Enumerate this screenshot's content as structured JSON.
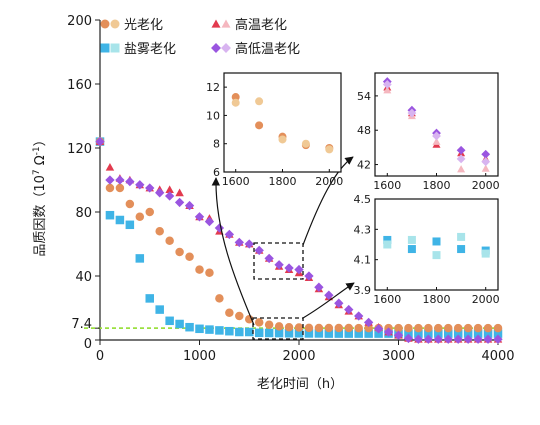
{
  "colors": {
    "light_aging": "#e38f5a",
    "light_aging_open": "#f0c995",
    "salt_fog_aging": "#3fb4e6",
    "salt_fog_aging_open": "#a8e4ea",
    "high_temp_aging": "#e23a4e",
    "high_temp_aging_open": "#f5b7bf",
    "high_low_temp_aging": "#9a55e0",
    "high_low_temp_aging_open": "#d8b4f0",
    "reference_line": "#9be040"
  },
  "chart_data": {
    "type": "scatter",
    "xlabel": "老化时间（h）",
    "ylabel": "品质因数（10^7 Ω^-1）",
    "ylabel_parts": {
      "main": "品质因数（10",
      "exp1": "7",
      "mid": " Ω",
      "exp2": "-1",
      "end": "）"
    },
    "xlim": [
      0,
      4000
    ],
    "ylim": [
      0,
      200
    ],
    "xticks": [
      "0",
      "1000",
      "2000",
      "3000",
      "4000"
    ],
    "yticks": [
      "0",
      "7.4",
      "40",
      "80",
      "120",
      "160",
      "200"
    ],
    "reference_line": {
      "y": 7.4,
      "label": "7.4"
    },
    "legend": {
      "placement": "top",
      "entries": [
        {
          "label": "光老化",
          "series": "light_aging"
        },
        {
          "label": "高温老化",
          "series": "high_temp_aging"
        },
        {
          "label": "盐雾老化",
          "series": "salt_fog_aging"
        },
        {
          "label": "高低温老化",
          "series": "high_low_temp_aging"
        }
      ]
    },
    "series": [
      {
        "id": "light_aging",
        "marker": "circle",
        "points": [
          [
            0,
            124
          ],
          [
            100,
            95
          ],
          [
            200,
            95
          ],
          [
            300,
            85
          ],
          [
            400,
            77
          ],
          [
            500,
            80
          ],
          [
            600,
            68
          ],
          [
            700,
            62
          ],
          [
            800,
            55
          ],
          [
            900,
            52
          ],
          [
            1000,
            44
          ],
          [
            1100,
            42
          ],
          [
            1200,
            26
          ],
          [
            1300,
            17
          ],
          [
            1400,
            15
          ],
          [
            1500,
            13
          ],
          [
            1600,
            11
          ],
          [
            1700,
            9.5
          ],
          [
            1800,
            8.5
          ],
          [
            1900,
            8
          ],
          [
            2000,
            7.8
          ],
          [
            2100,
            7.6
          ],
          [
            2200,
            7.5
          ],
          [
            2300,
            7.5
          ],
          [
            2400,
            7.5
          ],
          [
            2500,
            7.5
          ],
          [
            2600,
            7.4
          ],
          [
            2700,
            7.4
          ],
          [
            2800,
            7.4
          ],
          [
            2900,
            7.4
          ],
          [
            3000,
            7.4
          ],
          [
            3100,
            7.4
          ],
          [
            3200,
            7.4
          ],
          [
            3300,
            7.4
          ],
          [
            3400,
            7.4
          ],
          [
            3500,
            7.4
          ],
          [
            3600,
            7.4
          ],
          [
            3700,
            7.4
          ],
          [
            3800,
            7.4
          ],
          [
            3900,
            7.4
          ],
          [
            4000,
            7.4
          ]
        ]
      },
      {
        "id": "salt_fog_aging",
        "marker": "square",
        "points": [
          [
            0,
            124
          ],
          [
            100,
            78
          ],
          [
            200,
            75
          ],
          [
            300,
            72
          ],
          [
            400,
            51
          ],
          [
            500,
            26
          ],
          [
            600,
            19
          ],
          [
            700,
            12
          ],
          [
            800,
            10
          ],
          [
            900,
            8
          ],
          [
            1000,
            7
          ],
          [
            1100,
            6.5
          ],
          [
            1200,
            6
          ],
          [
            1300,
            5.5
          ],
          [
            1400,
            5
          ],
          [
            1500,
            5
          ],
          [
            1600,
            4.5
          ],
          [
            1700,
            4.4
          ],
          [
            1800,
            4.3
          ],
          [
            1900,
            4.2
          ],
          [
            2000,
            4.2
          ],
          [
            2100,
            4.1
          ],
          [
            2200,
            4.1
          ],
          [
            2300,
            4
          ],
          [
            2400,
            4
          ],
          [
            2500,
            4
          ],
          [
            2600,
            4
          ],
          [
            2700,
            4
          ],
          [
            2800,
            4
          ],
          [
            2900,
            4
          ],
          [
            3000,
            4
          ],
          [
            3100,
            4
          ],
          [
            3200,
            4
          ],
          [
            3300,
            4
          ],
          [
            3400,
            4
          ],
          [
            3500,
            4
          ],
          [
            3600,
            4
          ],
          [
            3700,
            4
          ],
          [
            3800,
            4
          ],
          [
            3900,
            4
          ],
          [
            4000,
            4
          ]
        ]
      },
      {
        "id": "high_temp_aging",
        "marker": "triangle",
        "points": [
          [
            0,
            124
          ],
          [
            100,
            108
          ],
          [
            200,
            101
          ],
          [
            300,
            100
          ],
          [
            400,
            97
          ],
          [
            500,
            95
          ],
          [
            600,
            94
          ],
          [
            700,
            94
          ],
          [
            800,
            92
          ],
          [
            900,
            84
          ],
          [
            1000,
            77
          ],
          [
            1100,
            76
          ],
          [
            1200,
            68
          ],
          [
            1300,
            66
          ],
          [
            1400,
            61
          ],
          [
            1500,
            60
          ],
          [
            1600,
            56
          ],
          [
            1700,
            51
          ],
          [
            1800,
            46
          ],
          [
            1900,
            44
          ],
          [
            2000,
            42
          ],
          [
            2100,
            39
          ],
          [
            2200,
            32
          ],
          [
            2300,
            27
          ],
          [
            2400,
            22
          ],
          [
            2500,
            18
          ],
          [
            2600,
            15
          ],
          [
            2700,
            11
          ],
          [
            2800,
            8
          ],
          [
            2900,
            5
          ],
          [
            3000,
            3
          ],
          [
            3100,
            1
          ],
          [
            3200,
            0.5
          ],
          [
            3300,
            0.5
          ],
          [
            3400,
            0.5
          ],
          [
            3500,
            0.5
          ],
          [
            3600,
            0.5
          ],
          [
            3700,
            0.5
          ],
          [
            3800,
            0.5
          ],
          [
            3900,
            0.5
          ],
          [
            4000,
            0.5
          ]
        ]
      },
      {
        "id": "high_low_temp_aging",
        "marker": "diamond",
        "points": [
          [
            0,
            124
          ],
          [
            100,
            100
          ],
          [
            200,
            100
          ],
          [
            300,
            99
          ],
          [
            400,
            97
          ],
          [
            500,
            95
          ],
          [
            600,
            92
          ],
          [
            700,
            90
          ],
          [
            800,
            86
          ],
          [
            900,
            84
          ],
          [
            1000,
            77
          ],
          [
            1100,
            74
          ],
          [
            1200,
            70
          ],
          [
            1300,
            66
          ],
          [
            1400,
            61
          ],
          [
            1500,
            60
          ],
          [
            1600,
            56
          ],
          [
            1700,
            51
          ],
          [
            1800,
            47
          ],
          [
            1900,
            45
          ],
          [
            2000,
            44
          ],
          [
            2100,
            40
          ],
          [
            2200,
            33
          ],
          [
            2300,
            28
          ],
          [
            2400,
            23
          ],
          [
            2500,
            19
          ],
          [
            2600,
            15
          ],
          [
            2700,
            11
          ],
          [
            2800,
            7
          ],
          [
            2900,
            5
          ],
          [
            3000,
            3
          ],
          [
            3100,
            1
          ],
          [
            3200,
            0.5
          ],
          [
            3300,
            0.5
          ],
          [
            3400,
            0.5
          ],
          [
            3500,
            0.5
          ],
          [
            3600,
            0.5
          ],
          [
            3700,
            0.5
          ],
          [
            3800,
            0.5
          ],
          [
            3900,
            0.5
          ],
          [
            4000,
            0.5
          ]
        ]
      }
    ],
    "insets": [
      {
        "id": "inset-light",
        "xlim": [
          1550,
          2050
        ],
        "ylim": [
          6,
          13
        ],
        "xticks": [
          "1600",
          "1800",
          "2000"
        ],
        "yticks": [
          "6",
          "8",
          "10",
          "12"
        ],
        "series": [
          {
            "id": "light_aging",
            "marker": "circle",
            "points": [
              [
                1600,
                11.3
              ],
              [
                1700,
                9.3
              ],
              [
                1800,
                8.5
              ],
              [
                1900,
                7.9
              ],
              [
                2000,
                7.7
              ]
            ]
          },
          {
            "id": "light_aging",
            "marker": "circle",
            "open": true,
            "points": [
              [
                1600,
                10.9
              ],
              [
                1700,
                11
              ],
              [
                1800,
                8.3
              ],
              [
                1900,
                8
              ],
              [
                2000,
                7.6
              ]
            ]
          }
        ]
      },
      {
        "id": "inset-temp",
        "xlim": [
          1550,
          2050
        ],
        "ylim": [
          40,
          58
        ],
        "xticks": [
          "1600",
          "1800",
          "2000"
        ],
        "yticks": [
          "42",
          "48",
          "54"
        ],
        "series": [
          {
            "id": "high_temp_aging",
            "marker": "triangle",
            "points": [
              [
                1600,
                55.5
              ],
              [
                1700,
                51
              ],
              [
                1800,
                45.5
              ],
              [
                1900,
                44
              ],
              [
                2000,
                43
              ]
            ]
          },
          {
            "id": "high_low_temp_aging",
            "marker": "diamond",
            "points": [
              [
                1600,
                56.5
              ],
              [
                1700,
                51.5
              ],
              [
                1800,
                47.5
              ],
              [
                1900,
                44.5
              ],
              [
                2000,
                43.8
              ]
            ]
          },
          {
            "id": "high_temp_aging",
            "marker": "triangle",
            "open": true,
            "points": [
              [
                1600,
                55
              ],
              [
                1700,
                50.5
              ],
              [
                1800,
                46
              ],
              [
                1900,
                41.2
              ],
              [
                2000,
                41.3
              ]
            ]
          },
          {
            "id": "high_low_temp_aging",
            "marker": "diamond",
            "open": true,
            "points": [
              [
                1600,
                56
              ],
              [
                1700,
                51
              ],
              [
                1800,
                47
              ],
              [
                1900,
                43
              ],
              [
                2000,
                42.5
              ]
            ]
          }
        ]
      },
      {
        "id": "inset-salt",
        "xlim": [
          1550,
          2050
        ],
        "ylim": [
          3.9,
          4.5
        ],
        "xticks": [
          "1600",
          "1800",
          "2000"
        ],
        "yticks": [
          "3.9",
          "4.1",
          "4.3",
          "4.5"
        ],
        "series": [
          {
            "id": "salt_fog_aging",
            "marker": "square",
            "points": [
              [
                1600,
                4.23
              ],
              [
                1700,
                4.17
              ],
              [
                1800,
                4.22
              ],
              [
                1900,
                4.17
              ],
              [
                2000,
                4.16
              ]
            ]
          },
          {
            "id": "salt_fog_aging",
            "marker": "square",
            "open": true,
            "points": [
              [
                1600,
                4.2
              ],
              [
                1700,
                4.23
              ],
              [
                1800,
                4.13
              ],
              [
                1900,
                4.25
              ],
              [
                2000,
                4.14
              ]
            ]
          }
        ]
      }
    ]
  }
}
